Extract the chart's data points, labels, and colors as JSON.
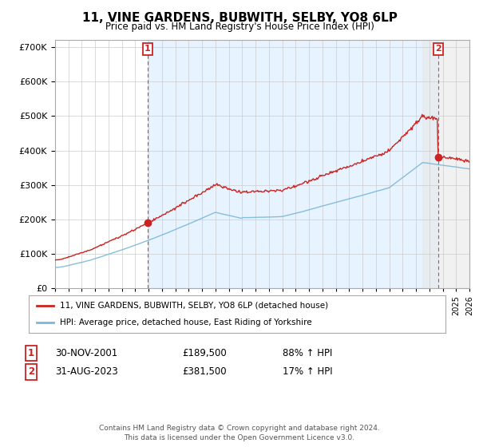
{
  "title": "11, VINE GARDENS, BUBWITH, SELBY, YO8 6LP",
  "subtitle": "Price paid vs. HM Land Registry's House Price Index (HPI)",
  "legend_line1": "11, VINE GARDENS, BUBWITH, SELBY, YO8 6LP (detached house)",
  "legend_line2": "HPI: Average price, detached house, East Riding of Yorkshire",
  "transaction1_label": "1",
  "transaction1_date": "30-NOV-2001",
  "transaction1_price": "£189,500",
  "transaction1_hpi": "88% ↑ HPI",
  "transaction1_x": 2001.92,
  "transaction1_y": 189500,
  "transaction2_label": "2",
  "transaction2_date": "31-AUG-2023",
  "transaction2_price": "£381,500",
  "transaction2_hpi": "17% ↑ HPI",
  "transaction2_x": 2023.67,
  "transaction2_y": 381500,
  "footer": "Contains HM Land Registry data © Crown copyright and database right 2024.\nThis data is licensed under the Open Government Licence v3.0.",
  "hpi_color": "#7ab8d9",
  "price_color": "#cc2222",
  "dashed_line_color": "#cc2222",
  "ylim": [
    0,
    720000
  ],
  "yticks": [
    0,
    100000,
    200000,
    300000,
    400000,
    500000,
    600000,
    700000
  ],
  "xmin": 1995,
  "xmax": 2026,
  "background_color": "#ffffff",
  "grid_color": "#cccccc",
  "fill_color": "#ddeeff",
  "shade_color": "#e8e8e8"
}
